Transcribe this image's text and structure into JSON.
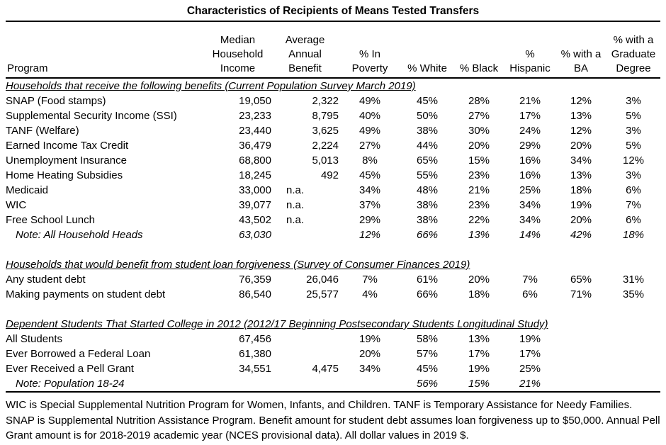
{
  "title": "Characteristics of Recipients of Means Tested Transfers",
  "columns": [
    {
      "id": "program",
      "label": "Program"
    },
    {
      "id": "income",
      "label": "Median\nHousehold\nIncome"
    },
    {
      "id": "benefit",
      "label": "Average\nAnnual\nBenefit"
    },
    {
      "id": "poverty",
      "label": "% In\nPoverty"
    },
    {
      "id": "white",
      "label": "% White"
    },
    {
      "id": "black",
      "label": "% Black"
    },
    {
      "id": "hispanic",
      "label": "%\nHispanic"
    },
    {
      "id": "ba",
      "label": "% with a\nBA"
    },
    {
      "id": "graduate",
      "label": "% with a\nGraduate\nDegree"
    }
  ],
  "sections": [
    {
      "heading": "Households that receive the following benefits (Current Population Survey March 2019)",
      "rows": [
        {
          "program": "SNAP (Food stamps)",
          "note": false,
          "values": [
            "19,050",
            "2,322",
            "49%",
            "45%",
            "28%",
            "21%",
            "12%",
            "3%"
          ]
        },
        {
          "program": "Supplemental Security Income (SSI)",
          "note": false,
          "values": [
            "23,233",
            "8,795",
            "40%",
            "50%",
            "27%",
            "17%",
            "13%",
            "5%"
          ]
        },
        {
          "program": "TANF (Welfare)",
          "note": false,
          "values": [
            "23,440",
            "3,625",
            "49%",
            "38%",
            "30%",
            "24%",
            "12%",
            "3%"
          ]
        },
        {
          "program": "Earned Income Tax Credit",
          "note": false,
          "values": [
            "36,479",
            "2,224",
            "27%",
            "44%",
            "20%",
            "29%",
            "20%",
            "5%"
          ]
        },
        {
          "program": "Unemployment Insurance",
          "note": false,
          "values": [
            "68,800",
            "5,013",
            "8%",
            "65%",
            "15%",
            "16%",
            "34%",
            "12%"
          ]
        },
        {
          "program": "Home Heating Subsidies",
          "note": false,
          "values": [
            "18,245",
            "492",
            "45%",
            "55%",
            "23%",
            "16%",
            "13%",
            "3%"
          ]
        },
        {
          "program": "Medicaid",
          "note": false,
          "values": [
            "33,000",
            "n.a.",
            "34%",
            "48%",
            "21%",
            "25%",
            "18%",
            "6%"
          ]
        },
        {
          "program": "WIC",
          "note": false,
          "values": [
            "39,077",
            "n.a.",
            "37%",
            "38%",
            "23%",
            "34%",
            "19%",
            "7%"
          ]
        },
        {
          "program": "Free School Lunch",
          "note": false,
          "values": [
            "43,502",
            "n.a.",
            "29%",
            "38%",
            "22%",
            "34%",
            "20%",
            "6%"
          ]
        },
        {
          "program": "Note: All Household Heads",
          "note": true,
          "values": [
            "63,030",
            "",
            "12%",
            "66%",
            "13%",
            "14%",
            "42%",
            "18%"
          ]
        }
      ]
    },
    {
      "heading": "Households that would benefit from student loan forgiveness (Survey of Consumer Finances 2019)",
      "rows": [
        {
          "program": "Any student debt",
          "note": false,
          "values": [
            "76,359",
            "26,046",
            "7%",
            "61%",
            "20%",
            "7%",
            "65%",
            "31%"
          ]
        },
        {
          "program": "Making payments on student debt",
          "note": false,
          "values": [
            "86,540",
            "25,577",
            "4%",
            "66%",
            "18%",
            "6%",
            "71%",
            "35%"
          ]
        }
      ]
    },
    {
      "heading": "Dependent Students That Started College in 2012 (2012/17 Beginning Postsecondary Students Longitudinal Study)",
      "rows": [
        {
          "program": "All Students",
          "note": false,
          "values": [
            "67,456",
            "",
            "19%",
            "58%",
            "13%",
            "19%",
            "",
            ""
          ]
        },
        {
          "program": "Ever Borrowed a Federal Loan",
          "note": false,
          "values": [
            "61,380",
            "",
            "20%",
            "57%",
            "17%",
            "17%",
            "",
            ""
          ]
        },
        {
          "program": "Ever Received a Pell Grant",
          "note": false,
          "values": [
            "34,551",
            "4,475",
            "34%",
            "45%",
            "19%",
            "25%",
            "",
            ""
          ]
        },
        {
          "program": "Note: Population 18-24",
          "note": true,
          "values": [
            "",
            "",
            "",
            "56%",
            "15%",
            "21%",
            "",
            ""
          ]
        }
      ]
    }
  ],
  "footnote": "WIC is Special Supplemental Nutrition Program for Women, Infants, and Children. TANF is Temporary Assistance for Needy Families. SNAP is Supplemental Nutrition Assistance Program. Benefit amount for student debt assumes loan forgiveness up to $50,000. Annual Pell Grant amount is for 2018-2019 academic year (NCES provisional data). All dollar values in 2019 $."
}
